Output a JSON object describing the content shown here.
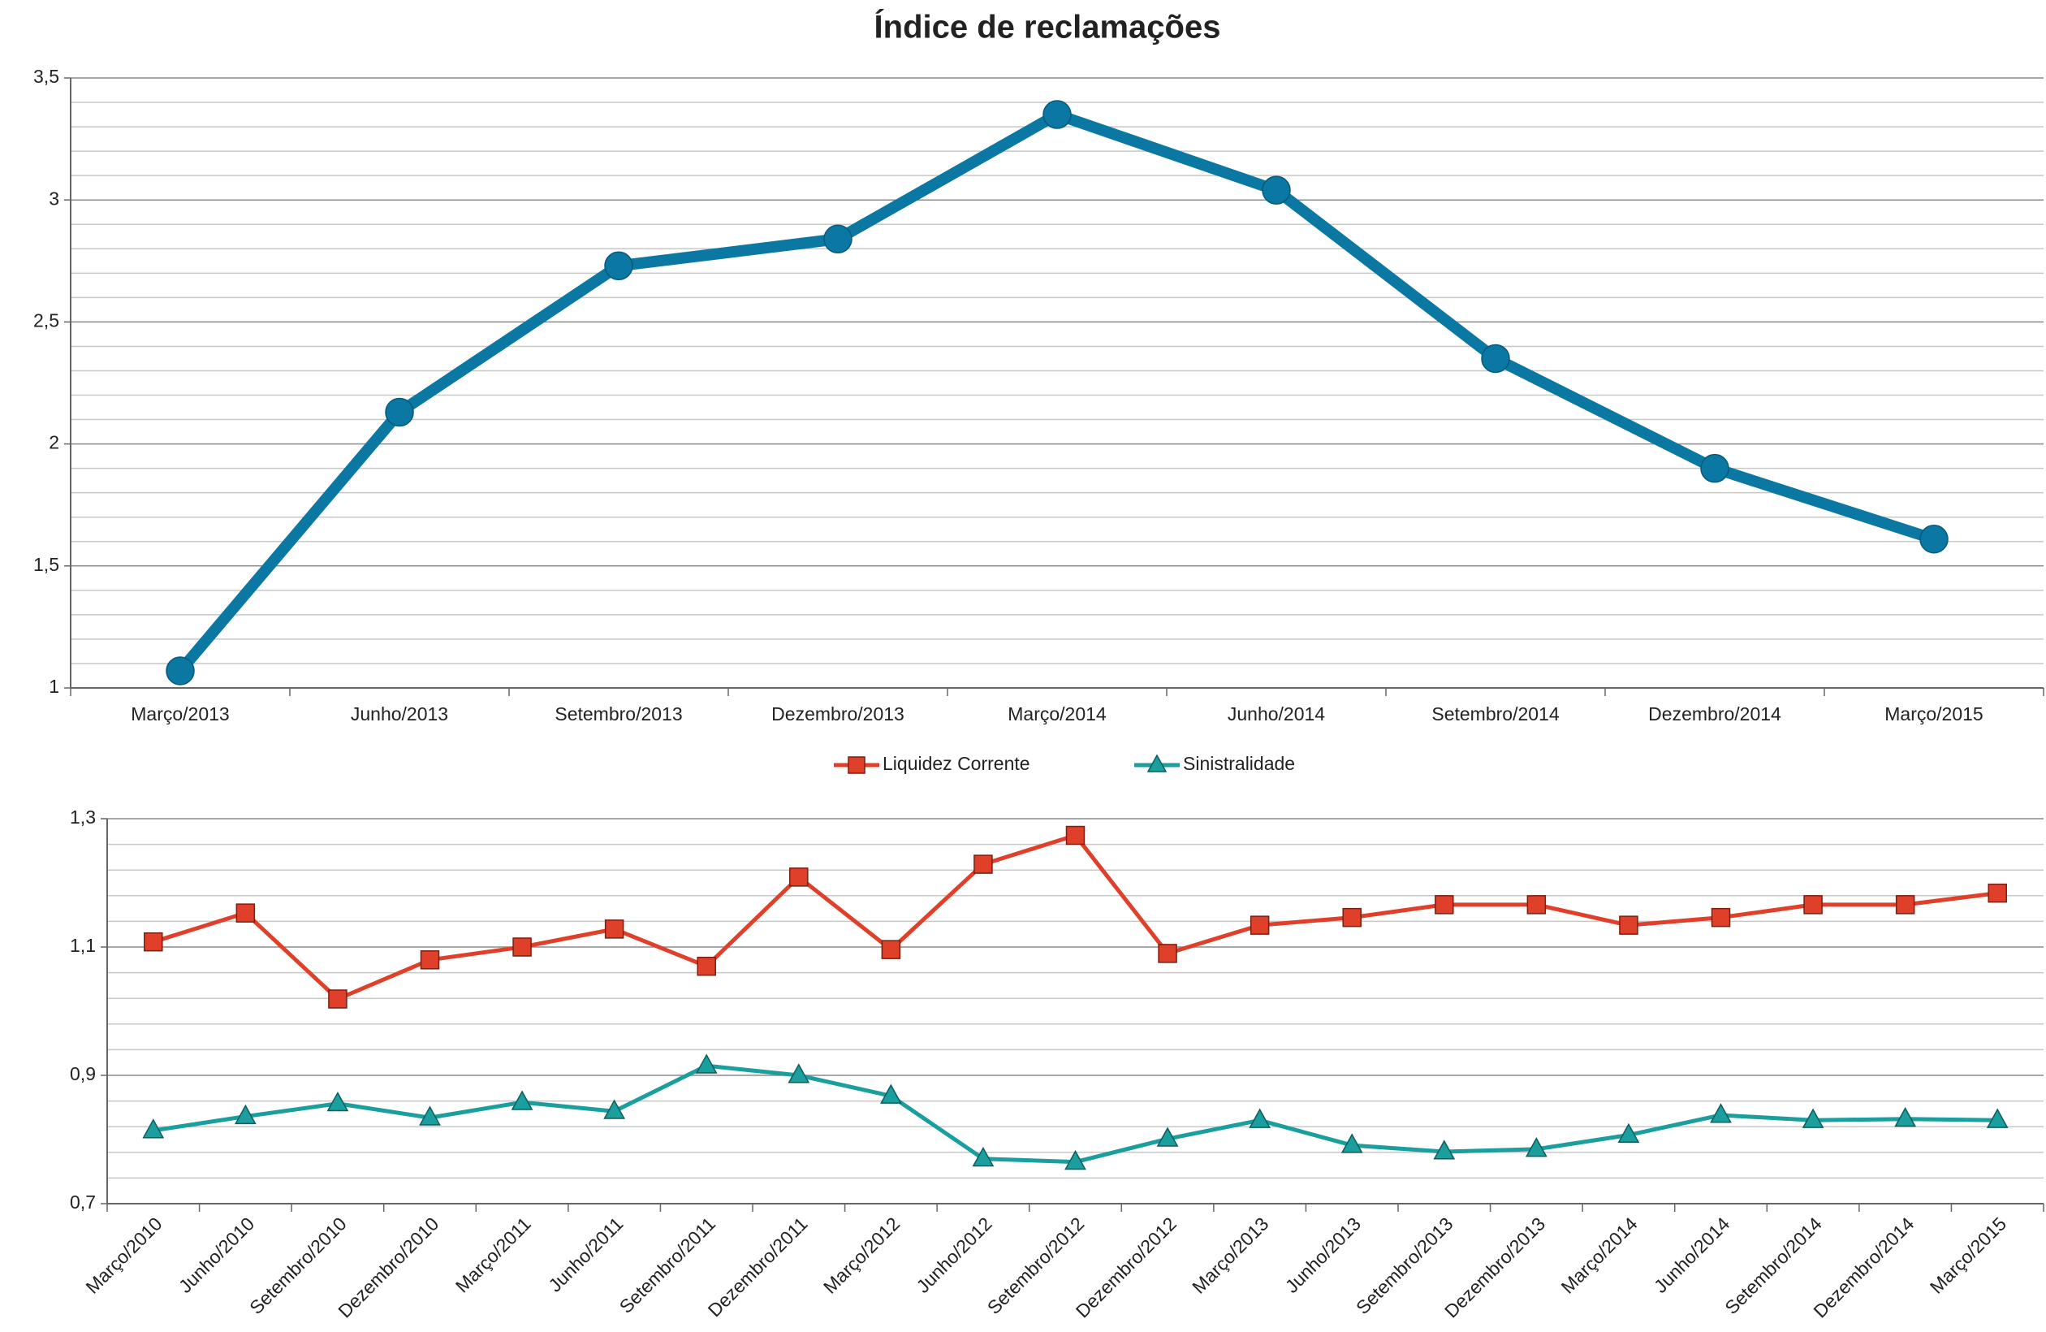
{
  "chart_data": [
    {
      "type": "line",
      "title": "Índice de reclamações",
      "categories": [
        "Março/2013",
        "Junho/2013",
        "Setembro/2013",
        "Dezembro/2013",
        "Março/2014",
        "Junho/2014",
        "Setembro/2014",
        "Dezembro/2014",
        "Março/2015"
      ],
      "series": [
        {
          "name": null,
          "color": "#0a78a3",
          "marker": "circle",
          "values": [
            1.07,
            2.13,
            2.73,
            2.84,
            3.35,
            3.04,
            2.35,
            1.9,
            1.61
          ]
        }
      ],
      "ylim": [
        1,
        3.5
      ],
      "yticks": [
        1,
        {
          "value": 1.5,
          "label": "1,5"
        },
        2,
        {
          "value": 2.5,
          "label": "2,5"
        },
        3,
        {
          "value": 3.5,
          "label": "3,5"
        }
      ],
      "grid": true,
      "minor_grid": true,
      "legend": false
    },
    {
      "type": "line",
      "categories": [
        "Março/2010",
        "Junho/2010",
        "Setembro/2010",
        "Dezembro/2010",
        "Março/2011",
        "Junho/2011",
        "Setembro/2011",
        "Dezembro/2011",
        "Março/2012",
        "Junho/2012",
        "Setembro/2012",
        "Dezembro/2012",
        "Março/2013",
        "Junho/2013",
        "Setembro/2013",
        "Dezembro/2013",
        "Março/2014",
        "Junho/2014",
        "Setembro/2014",
        "Dezembro/2014",
        "Março/2015"
      ],
      "series": [
        {
          "name": "Liquidez Corrente",
          "color": "#e0402a",
          "marker": "square",
          "values": [
            1.108,
            1.153,
            1.019,
            1.08,
            1.1,
            1.128,
            1.07,
            1.209,
            1.096,
            1.229,
            1.274,
            1.09,
            1.134,
            1.146,
            1.166,
            1.166,
            1.134,
            1.146,
            1.166,
            1.166,
            1.184
          ]
        },
        {
          "name": "Sinistralidade",
          "color": "#1a9e9e",
          "marker": "triangle",
          "values": [
            0.814,
            0.836,
            0.856,
            0.834,
            0.858,
            0.844,
            0.915,
            0.9,
            0.868,
            0.77,
            0.765,
            0.801,
            0.83,
            0.791,
            0.781,
            0.785,
            0.807,
            0.838,
            0.83,
            0.832,
            0.83
          ]
        }
      ],
      "ylim": [
        0.7,
        1.3
      ],
      "yticks": [
        {
          "value": 0.7,
          "label": "0,7"
        },
        {
          "value": 0.9,
          "label": "0,9"
        },
        {
          "value": 1.1,
          "label": "1,1"
        },
        {
          "value": 1.3,
          "label": "1,3"
        }
      ],
      "grid": true,
      "minor_grid": true,
      "legend": "top",
      "rotate_x_labels": true
    }
  ]
}
